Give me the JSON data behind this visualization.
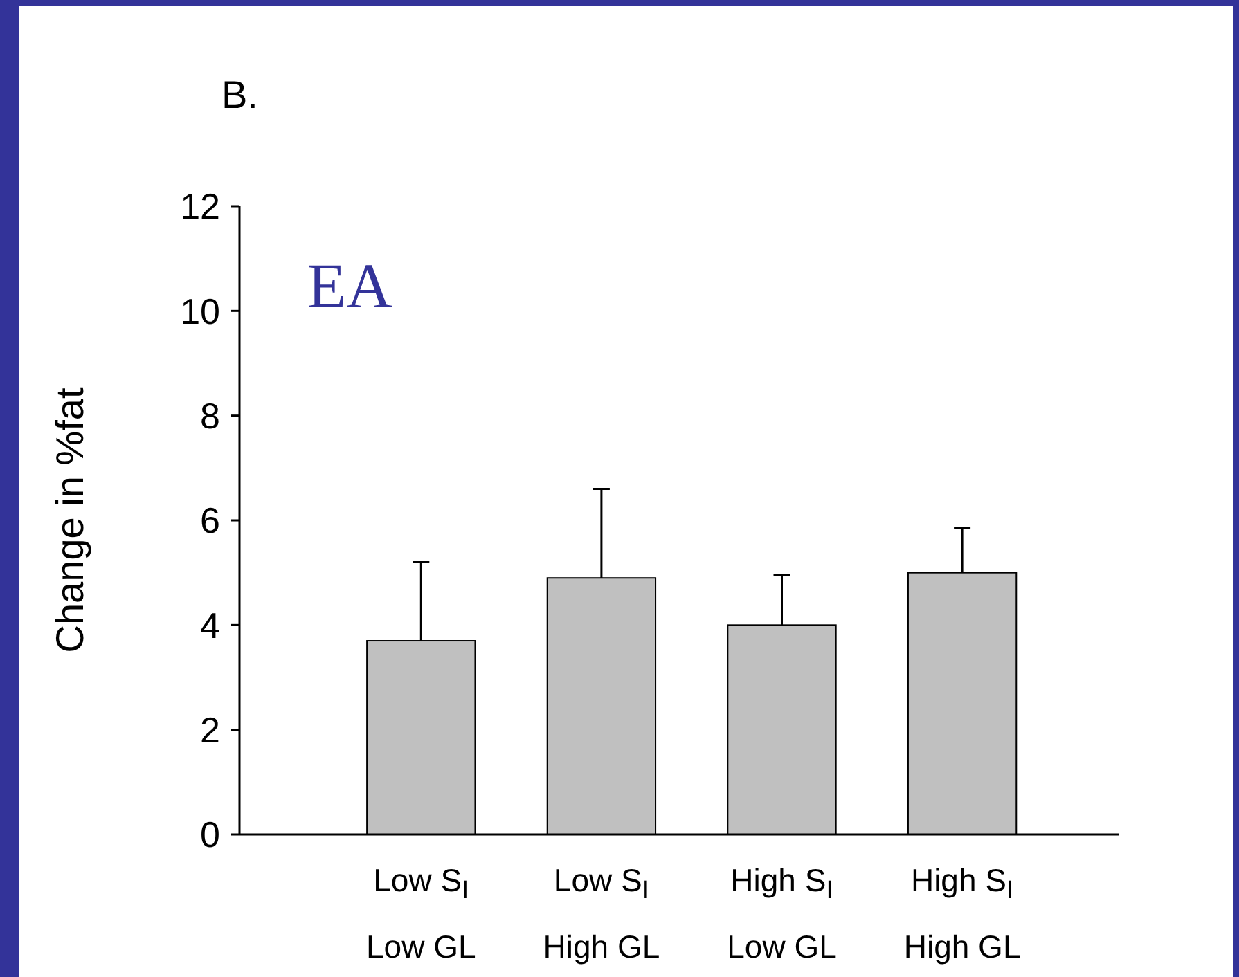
{
  "chart_data": {
    "type": "bar",
    "title": "B.",
    "ylabel": "Change in %fat",
    "annotations": [
      "EA"
    ],
    "categories": [
      "Low S$_{I}$\nLow GL",
      "Low S$_{I}$\nHigh GL",
      "High S$_{I}$\nLow GL",
      "High S$_{I}$\nHigh GL"
    ],
    "values": [
      3.7,
      4.9,
      4.0,
      5.0
    ],
    "errors": [
      [
        3.7,
        5.2
      ],
      [
        4.9,
        6.6
      ],
      [
        4.0,
        4.95
      ],
      [
        5.0,
        5.85
      ]
    ],
    "color": "#c0c0c0",
    "ylim": [
      0,
      12
    ],
    "yticks": [
      0,
      2,
      4,
      6,
      8,
      10,
      12
    ],
    "grid": false
  }
}
